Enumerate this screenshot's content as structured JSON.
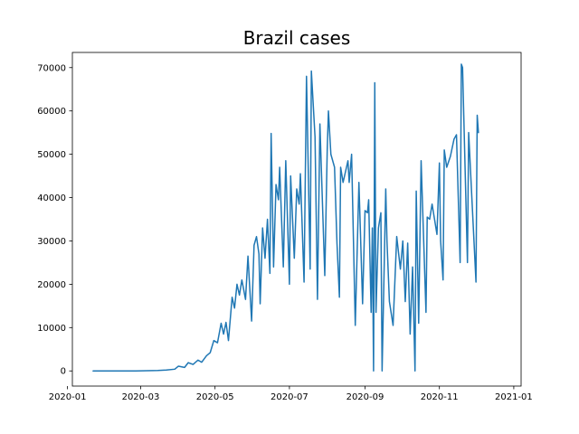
{
  "chart_data": {
    "type": "line",
    "title": "Brazil cases",
    "xlabel": "",
    "ylabel": "",
    "x_axis": "date",
    "xlim": [
      "2020-01-05",
      "2021-01-07"
    ],
    "ylim": [
      -3500,
      73500
    ],
    "grid": false,
    "legend": "none",
    "x_ticks": [
      "2020-01",
      "2020-03",
      "2020-05",
      "2020-07",
      "2020-09",
      "2020-11",
      "2021-01"
    ],
    "y_ticks": [
      0,
      10000,
      20000,
      30000,
      40000,
      50000,
      60000,
      70000
    ],
    "y_tick_labels": [
      "0",
      "10000",
      "20000",
      "30000",
      "40000",
      "50000",
      "60000",
      "70000"
    ],
    "color": "#1f77b4",
    "series": [
      {
        "points": [
          [
            "2020-01-22",
            0
          ],
          [
            "2020-02-26",
            0
          ],
          [
            "2020-03-15",
            100
          ],
          [
            "2020-03-22",
            200
          ],
          [
            "2020-03-29",
            400
          ],
          [
            "2020-04-01",
            1100
          ],
          [
            "2020-04-06",
            800
          ],
          [
            "2020-04-09",
            1900
          ],
          [
            "2020-04-13",
            1500
          ],
          [
            "2020-04-17",
            2500
          ],
          [
            "2020-04-20",
            2000
          ],
          [
            "2020-04-24",
            3500
          ],
          [
            "2020-04-27",
            4200
          ],
          [
            "2020-04-30",
            7000
          ],
          [
            "2020-05-03",
            6500
          ],
          [
            "2020-05-06",
            11000
          ],
          [
            "2020-05-08",
            8500
          ],
          [
            "2020-05-10",
            11200
          ],
          [
            "2020-05-12",
            7000
          ],
          [
            "2020-05-15",
            17000
          ],
          [
            "2020-05-17",
            14500
          ],
          [
            "2020-05-19",
            20000
          ],
          [
            "2020-05-21",
            17500
          ],
          [
            "2020-05-23",
            21000
          ],
          [
            "2020-05-26",
            16500
          ],
          [
            "2020-05-28",
            26500
          ],
          [
            "2020-05-31",
            11500
          ],
          [
            "2020-06-02",
            29000
          ],
          [
            "2020-06-04",
            31000
          ],
          [
            "2020-06-06",
            27000
          ],
          [
            "2020-06-07",
            15500
          ],
          [
            "2020-06-09",
            33000
          ],
          [
            "2020-06-11",
            26000
          ],
          [
            "2020-06-13",
            35000
          ],
          [
            "2020-06-15",
            22500
          ],
          [
            "2020-06-16",
            54800
          ],
          [
            "2020-06-18",
            24000
          ],
          [
            "2020-06-20",
            43000
          ],
          [
            "2020-06-22",
            39500
          ],
          [
            "2020-06-23",
            47000
          ],
          [
            "2020-06-26",
            24000
          ],
          [
            "2020-06-28",
            48500
          ],
          [
            "2020-07-01",
            20000
          ],
          [
            "2020-07-02",
            45000
          ],
          [
            "2020-07-05",
            26000
          ],
          [
            "2020-07-07",
            42000
          ],
          [
            "2020-07-09",
            38500
          ],
          [
            "2020-07-10",
            45500
          ],
          [
            "2020-07-13",
            20500
          ],
          [
            "2020-07-15",
            68000
          ],
          [
            "2020-07-18",
            23500
          ],
          [
            "2020-07-19",
            69200
          ],
          [
            "2020-07-22",
            54000
          ],
          [
            "2020-07-24",
            16500
          ],
          [
            "2020-07-26",
            57000
          ],
          [
            "2020-07-30",
            22000
          ],
          [
            "2020-08-01",
            51000
          ],
          [
            "2020-08-02",
            60000
          ],
          [
            "2020-08-04",
            50000
          ],
          [
            "2020-08-07",
            47000
          ],
          [
            "2020-08-09",
            29500
          ],
          [
            "2020-08-11",
            17000
          ],
          [
            "2020-08-12",
            47000
          ],
          [
            "2020-08-14",
            43500
          ],
          [
            "2020-08-18",
            48500
          ],
          [
            "2020-08-19",
            43500
          ],
          [
            "2020-08-21",
            50000
          ],
          [
            "2020-08-24",
            10500
          ],
          [
            "2020-08-27",
            43500
          ],
          [
            "2020-08-30",
            15500
          ],
          [
            "2020-09-01",
            37000
          ],
          [
            "2020-09-03",
            36500
          ],
          [
            "2020-09-04",
            39500
          ],
          [
            "2020-09-06",
            13500
          ],
          [
            "2020-09-07",
            33000
          ],
          [
            "2020-09-08",
            0
          ],
          [
            "2020-09-09",
            66500
          ],
          [
            "2020-09-10",
            13500
          ],
          [
            "2020-09-12",
            33000
          ],
          [
            "2020-09-14",
            36500
          ],
          [
            "2020-09-15",
            0
          ],
          [
            "2020-09-18",
            42000
          ],
          [
            "2020-09-19",
            30000
          ],
          [
            "2020-09-21",
            16000
          ],
          [
            "2020-09-24",
            10500
          ],
          [
            "2020-09-27",
            31000
          ],
          [
            "2020-09-30",
            23500
          ],
          [
            "2020-10-02",
            30000
          ],
          [
            "2020-10-04",
            16000
          ],
          [
            "2020-10-06",
            29500
          ],
          [
            "2020-10-08",
            8500
          ],
          [
            "2020-10-10",
            24000
          ],
          [
            "2020-10-12",
            0
          ],
          [
            "2020-10-13",
            41500
          ],
          [
            "2020-10-15",
            11000
          ],
          [
            "2020-10-17",
            48500
          ],
          [
            "2020-10-21",
            13500
          ],
          [
            "2020-10-22",
            35500
          ],
          [
            "2020-10-24",
            35000
          ],
          [
            "2020-10-26",
            38500
          ],
          [
            "2020-10-28",
            35000
          ],
          [
            "2020-10-30",
            31500
          ],
          [
            "2020-11-01",
            48000
          ],
          [
            "2020-11-02",
            30000
          ],
          [
            "2020-11-04",
            21000
          ],
          [
            "2020-11-05",
            51000
          ],
          [
            "2020-11-07",
            47000
          ],
          [
            "2020-11-10",
            49500
          ],
          [
            "2020-11-13",
            53500
          ],
          [
            "2020-11-15",
            54500
          ],
          [
            "2020-11-18",
            25000
          ],
          [
            "2020-11-19",
            70800
          ],
          [
            "2020-11-20",
            70000
          ],
          [
            "2020-11-24",
            25000
          ],
          [
            "2020-11-25",
            55000
          ],
          [
            "2020-12-01",
            20500
          ],
          [
            "2020-12-02",
            59000
          ],
          [
            "2020-12-03",
            55000
          ]
        ]
      }
    ]
  }
}
